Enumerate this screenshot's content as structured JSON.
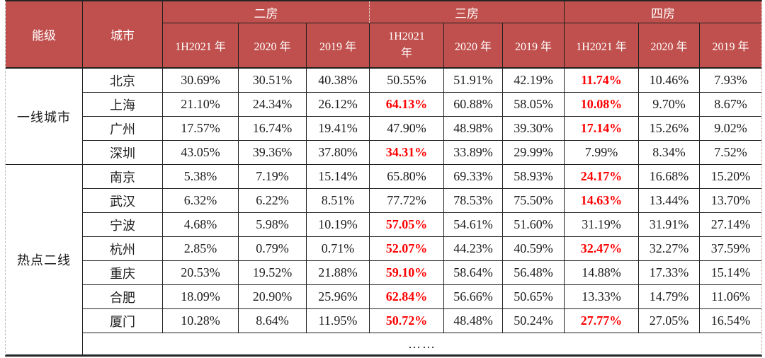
{
  "chart_data": {
    "type": "table",
    "table_theme": {
      "header_bg": "#c0504d",
      "header_text": "#ffffff",
      "highlight_text": "#fe0000",
      "body_text": "#1c1c1c"
    },
    "header": {
      "tier": "能级",
      "city": "城市"
    },
    "groups": [
      {
        "label": "二房",
        "cols": [
          "1H2021 年",
          "2020 年",
          "2019 年"
        ]
      },
      {
        "label": "三房",
        "cols": [
          "1H2021\n年",
          "2020 年",
          "2019 年"
        ]
      },
      {
        "label": "四房",
        "cols": [
          "1H2021 年",
          "2020 年",
          "2019 年"
        ]
      }
    ],
    "tiers": [
      {
        "label": "一线城市",
        "rows": [
          {
            "city": "北京",
            "values": [
              "30.69%",
              "30.51%",
              "40.38%",
              "50.55%",
              "51.91%",
              "42.19%",
              "11.74%",
              "10.46%",
              "7.93%"
            ],
            "red": [
              6
            ]
          },
          {
            "city": "上海",
            "values": [
              "21.10%",
              "24.34%",
              "26.12%",
              "64.13%",
              "60.88%",
              "58.05%",
              "10.08%",
              "9.70%",
              "8.67%"
            ],
            "red": [
              3,
              6
            ]
          },
          {
            "city": "广州",
            "values": [
              "17.57%",
              "16.74%",
              "19.41%",
              "47.90%",
              "48.98%",
              "39.30%",
              "17.14%",
              "15.26%",
              "9.02%"
            ],
            "red": [
              6
            ]
          },
          {
            "city": "深圳",
            "values": [
              "43.05%",
              "39.36%",
              "37.80%",
              "34.31%",
              "33.89%",
              "29.99%",
              "7.99%",
              "8.34%",
              "7.52%"
            ],
            "red": [
              3
            ]
          }
        ]
      },
      {
        "label": "热点二线",
        "rows": [
          {
            "city": "南京",
            "values": [
              "5.38%",
              "7.19%",
              "15.14%",
              "65.80%",
              "69.33%",
              "58.93%",
              "24.17%",
              "16.68%",
              "15.20%"
            ],
            "red": [
              6
            ]
          },
          {
            "city": "武汉",
            "values": [
              "6.32%",
              "6.22%",
              "8.51%",
              "77.72%",
              "78.53%",
              "75.50%",
              "14.63%",
              "13.44%",
              "13.70%"
            ],
            "red": [
              6
            ]
          },
          {
            "city": "宁波",
            "values": [
              "4.68%",
              "5.98%",
              "10.19%",
              "57.05%",
              "54.61%",
              "51.60%",
              "31.19%",
              "31.91%",
              "27.14%"
            ],
            "red": [
              3
            ]
          },
          {
            "city": "杭州",
            "values": [
              "2.85%",
              "0.79%",
              "0.71%",
              "52.07%",
              "44.23%",
              "40.59%",
              "32.47%",
              "32.27%",
              "37.59%"
            ],
            "red": [
              3,
              6
            ]
          },
          {
            "city": "重庆",
            "values": [
              "20.53%",
              "19.52%",
              "21.88%",
              "59.10%",
              "58.64%",
              "56.48%",
              "14.88%",
              "17.33%",
              "15.14%"
            ],
            "red": [
              3
            ]
          },
          {
            "city": "合肥",
            "values": [
              "18.09%",
              "20.90%",
              "25.96%",
              "62.84%",
              "56.66%",
              "50.65%",
              "13.33%",
              "14.79%",
              "11.06%"
            ],
            "red": [
              3
            ]
          },
          {
            "city": "厦门",
            "values": [
              "10.28%",
              "8.64%",
              "11.95%",
              "50.72%",
              "48.48%",
              "50.24%",
              "27.77%",
              "27.05%",
              "16.54%"
            ],
            "red": [
              3,
              6
            ]
          }
        ]
      }
    ],
    "ellipsis": "……"
  }
}
